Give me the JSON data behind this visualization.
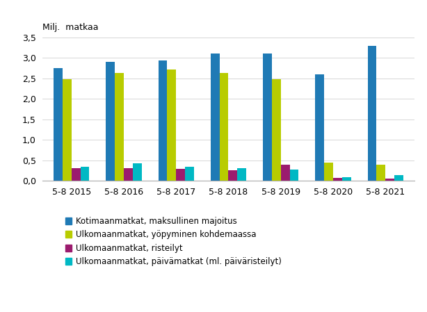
{
  "years": [
    "5-8 2015",
    "5-8 2016",
    "5-8 2017",
    "5-8 2018",
    "5-8 2019",
    "5-8 2020",
    "5-8 2021"
  ],
  "series": {
    "Kotimaanmatkat, maksullinen majoitus": [
      2.76,
      2.91,
      2.94,
      3.1,
      3.1,
      2.6,
      3.3
    ],
    "Ulkomaanmatkat, yöpyminen kohdemaassa": [
      2.48,
      2.63,
      2.72,
      2.63,
      2.48,
      0.45,
      0.4
    ],
    "Ulkomaanmatkat, risteilyt": [
      0.32,
      0.32,
      0.3,
      0.26,
      0.39,
      0.08,
      0.05
    ],
    "Ulkomaanmatkat, päivämatkat (ml. päiväristeilyt)": [
      0.35,
      0.43,
      0.34,
      0.32,
      0.28,
      0.1,
      0.15
    ]
  },
  "colors": [
    "#1f7ab5",
    "#b8cc00",
    "#9b1b6e",
    "#00b8c4"
  ],
  "ylabel": "Milj.  matkaa",
  "ylim": [
    0,
    3.5
  ],
  "yticks": [
    0.0,
    0.5,
    1.0,
    1.5,
    2.0,
    2.5,
    3.0,
    3.5
  ],
  "ytick_labels": [
    "0,0",
    "0,5",
    "1,0",
    "1,5",
    "2,0",
    "2,5",
    "3,0",
    "3,5"
  ],
  "legend_labels": [
    "Kotimaanmatkat, maksullinen majoitus",
    "Ulkomaanmatkat, yöpyminen kohdemaassa",
    "Ulkomaanmatkat, risteilyt",
    "Ulkomaanmatkat, päivämatkat (ml. päiväristeilyt)"
  ],
  "background_color": "#ffffff",
  "grid_color": "#d0d0d0",
  "bar_width": 0.17,
  "figsize": [
    6.14,
    4.49
  ],
  "dpi": 100
}
